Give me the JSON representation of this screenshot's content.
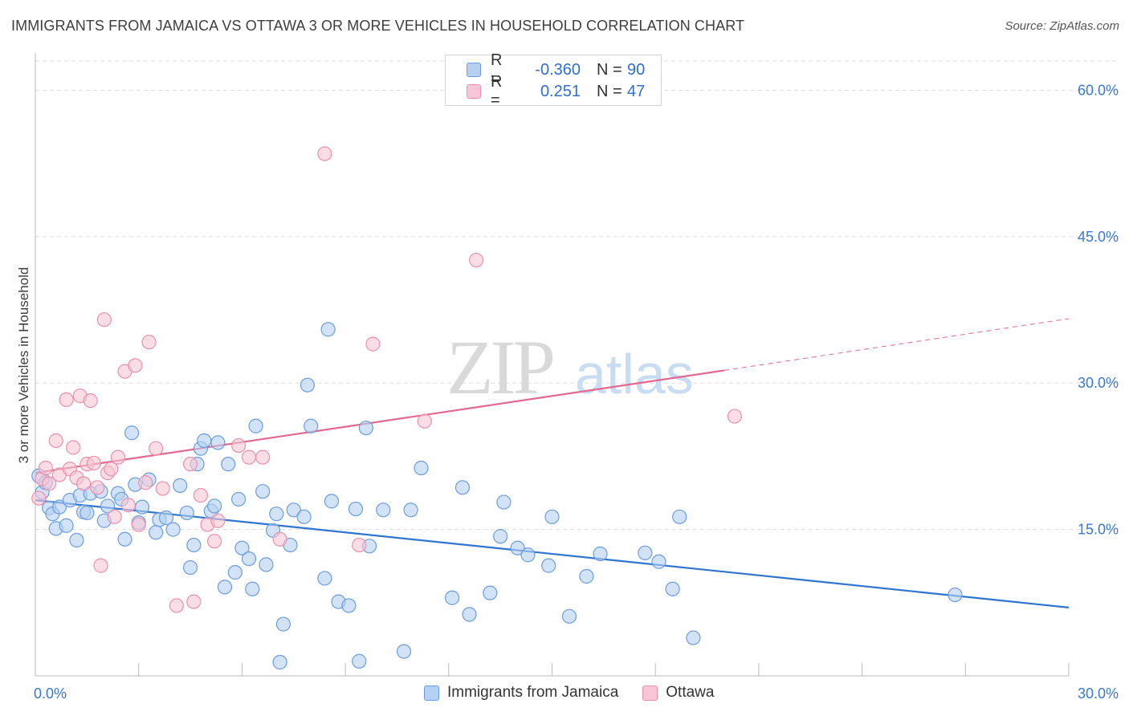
{
  "header": {
    "title": "IMMIGRANTS FROM JAMAICA VS OTTAWA 3 OR MORE VEHICLES IN HOUSEHOLD CORRELATION CHART",
    "source": "Source: ZipAtlas.com"
  },
  "legend_box": {
    "rows": [
      {
        "r_label": "R =",
        "r_value": "-0.360",
        "n_label": "N =",
        "n_value": "90"
      },
      {
        "r_label": "R =",
        "r_value": "0.251",
        "n_label": "N =",
        "n_value": "47"
      }
    ]
  },
  "colors": {
    "blue_fill": "#b6d0f2",
    "blue_stroke": "#6a9de0",
    "blue_line": "#2f74d0",
    "pink_fill": "#f8c6d6",
    "pink_stroke": "#ec8fad",
    "pink_line": "#e2688f",
    "axis_tick_text": "#3b78d0",
    "grid": "#dedede"
  },
  "chart_data": {
    "type": "scatter",
    "title": "IMMIGRANTS FROM JAMAICA VS OTTAWA 3 OR MORE VEHICLES IN HOUSEHOLD CORRELATION CHART",
    "xlabel": "",
    "ylabel": "3 or more Vehicles in Household",
    "xlim": [
      0,
      30
    ],
    "ylim": [
      0,
      63
    ],
    "x_tick_labels": [
      "0.0%",
      "30.0%"
    ],
    "y_ticks": [
      15,
      30,
      45,
      60
    ],
    "y_tick_labels": [
      "15.0%",
      "30.0%",
      "45.0%",
      "60.0%"
    ],
    "grid": true,
    "legend_placement": "bottom-center",
    "watermark": "ZIPatlas",
    "series": [
      {
        "name": "Immigrants from Jamaica",
        "color": "#b6d0f2",
        "points": [
          [
            0.1,
            20.5
          ],
          [
            0.2,
            18.8
          ],
          [
            0.3,
            19.8
          ],
          [
            0.4,
            17.2
          ],
          [
            0.5,
            16.6
          ],
          [
            0.6,
            15.1
          ],
          [
            0.7,
            17.3
          ],
          [
            0.9,
            15.4
          ],
          [
            1.0,
            18.0
          ],
          [
            1.2,
            13.9
          ],
          [
            1.3,
            18.5
          ],
          [
            1.4,
            16.8
          ],
          [
            1.5,
            16.7
          ],
          [
            1.6,
            18.7
          ],
          [
            1.9,
            18.9
          ],
          [
            2.0,
            15.9
          ],
          [
            2.1,
            17.4
          ],
          [
            2.4,
            18.7
          ],
          [
            2.5,
            18.1
          ],
          [
            2.6,
            14.0
          ],
          [
            2.9,
            19.6
          ],
          [
            3.0,
            15.7
          ],
          [
            3.1,
            17.3
          ],
          [
            3.3,
            20.1
          ],
          [
            3.5,
            14.7
          ],
          [
            3.6,
            16.0
          ],
          [
            3.8,
            16.2
          ],
          [
            4.0,
            15.0
          ],
          [
            4.2,
            19.5
          ],
          [
            4.4,
            16.7
          ],
          [
            4.5,
            11.1
          ],
          [
            4.6,
            13.4
          ],
          [
            4.7,
            21.7
          ],
          [
            4.8,
            23.3
          ],
          [
            4.9,
            24.1
          ],
          [
            5.1,
            16.9
          ],
          [
            5.2,
            17.4
          ],
          [
            5.3,
            23.9
          ],
          [
            5.5,
            9.1
          ],
          [
            5.6,
            21.7
          ],
          [
            5.8,
            10.6
          ],
          [
            5.9,
            18.1
          ],
          [
            6.0,
            13.1
          ],
          [
            6.2,
            12.0
          ],
          [
            6.3,
            8.9
          ],
          [
            6.4,
            25.6
          ],
          [
            6.6,
            18.9
          ],
          [
            6.7,
            11.4
          ],
          [
            6.9,
            14.9
          ],
          [
            7.0,
            16.6
          ],
          [
            7.1,
            1.4
          ],
          [
            7.2,
            5.3
          ],
          [
            7.4,
            13.4
          ],
          [
            7.5,
            17.0
          ],
          [
            7.8,
            16.3
          ],
          [
            7.9,
            29.8
          ],
          [
            8.0,
            25.6
          ],
          [
            8.4,
            10.0
          ],
          [
            8.5,
            35.5
          ],
          [
            8.6,
            17.9
          ],
          [
            8.8,
            7.6
          ],
          [
            9.1,
            7.2
          ],
          [
            9.3,
            17.1
          ],
          [
            9.4,
            1.5
          ],
          [
            9.6,
            25.4
          ],
          [
            9.7,
            13.3
          ],
          [
            10.1,
            17.0
          ],
          [
            10.7,
            2.5
          ],
          [
            10.9,
            17.0
          ],
          [
            11.2,
            21.3
          ],
          [
            12.1,
            8.0
          ],
          [
            12.4,
            19.3
          ],
          [
            12.6,
            6.3
          ],
          [
            13.2,
            8.5
          ],
          [
            13.5,
            14.3
          ],
          [
            13.6,
            17.8
          ],
          [
            14.0,
            13.1
          ],
          [
            14.3,
            12.4
          ],
          [
            14.9,
            11.3
          ],
          [
            15.0,
            16.3
          ],
          [
            15.5,
            6.1
          ],
          [
            16.0,
            10.2
          ],
          [
            16.4,
            12.5
          ],
          [
            17.7,
            12.6
          ],
          [
            18.1,
            11.7
          ],
          [
            18.5,
            8.9
          ],
          [
            18.7,
            16.3
          ],
          [
            19.1,
            3.9
          ],
          [
            26.7,
            8.3
          ],
          [
            2.8,
            24.9
          ]
        ]
      },
      {
        "name": "Ottawa",
        "color": "#f8c6d6",
        "points": [
          [
            0.1,
            18.2
          ],
          [
            0.2,
            20.2
          ],
          [
            0.4,
            19.7
          ],
          [
            0.6,
            24.1
          ],
          [
            0.7,
            20.6
          ],
          [
            0.9,
            28.3
          ],
          [
            1.0,
            21.2
          ],
          [
            1.1,
            23.4
          ],
          [
            1.2,
            20.3
          ],
          [
            1.3,
            28.7
          ],
          [
            1.4,
            19.7
          ],
          [
            1.5,
            21.7
          ],
          [
            1.6,
            28.2
          ],
          [
            1.8,
            19.3
          ],
          [
            1.9,
            11.3
          ],
          [
            2.0,
            36.5
          ],
          [
            2.1,
            20.8
          ],
          [
            2.2,
            21.2
          ],
          [
            2.4,
            22.4
          ],
          [
            2.6,
            31.2
          ],
          [
            2.7,
            17.5
          ],
          [
            2.9,
            31.8
          ],
          [
            3.0,
            15.5
          ],
          [
            3.2,
            19.8
          ],
          [
            3.3,
            34.2
          ],
          [
            3.5,
            23.3
          ],
          [
            4.1,
            7.2
          ],
          [
            4.5,
            21.7
          ],
          [
            4.6,
            7.6
          ],
          [
            4.8,
            18.5
          ],
          [
            5.0,
            15.5
          ],
          [
            5.2,
            13.8
          ],
          [
            5.3,
            15.9
          ],
          [
            5.9,
            23.6
          ],
          [
            6.2,
            22.4
          ],
          [
            6.6,
            22.4
          ],
          [
            7.1,
            14.0
          ],
          [
            8.4,
            53.5
          ],
          [
            9.4,
            13.4
          ],
          [
            9.8,
            34.0
          ],
          [
            11.3,
            26.1
          ],
          [
            12.8,
            42.6
          ],
          [
            20.3,
            26.6
          ],
          [
            0.3,
            21.3
          ],
          [
            1.7,
            21.8
          ],
          [
            2.3,
            16.3
          ],
          [
            3.7,
            19.2
          ]
        ]
      }
    ],
    "trend_lines": [
      {
        "series": "Immigrants from Jamaica",
        "x": [
          0,
          30
        ],
        "y": [
          18.0,
          7.0
        ],
        "style": "solid"
      },
      {
        "series": "Ottawa",
        "x": [
          0,
          20
        ],
        "y": [
          20.8,
          31.3
        ],
        "style": "solid"
      },
      {
        "series": "Ottawa",
        "x": [
          20,
          30
        ],
        "y": [
          31.3,
          36.6
        ],
        "style": "dashed"
      }
    ]
  },
  "bottom_legend": {
    "items": [
      {
        "label": "Immigrants from Jamaica"
      },
      {
        "label": "Ottawa"
      }
    ]
  }
}
